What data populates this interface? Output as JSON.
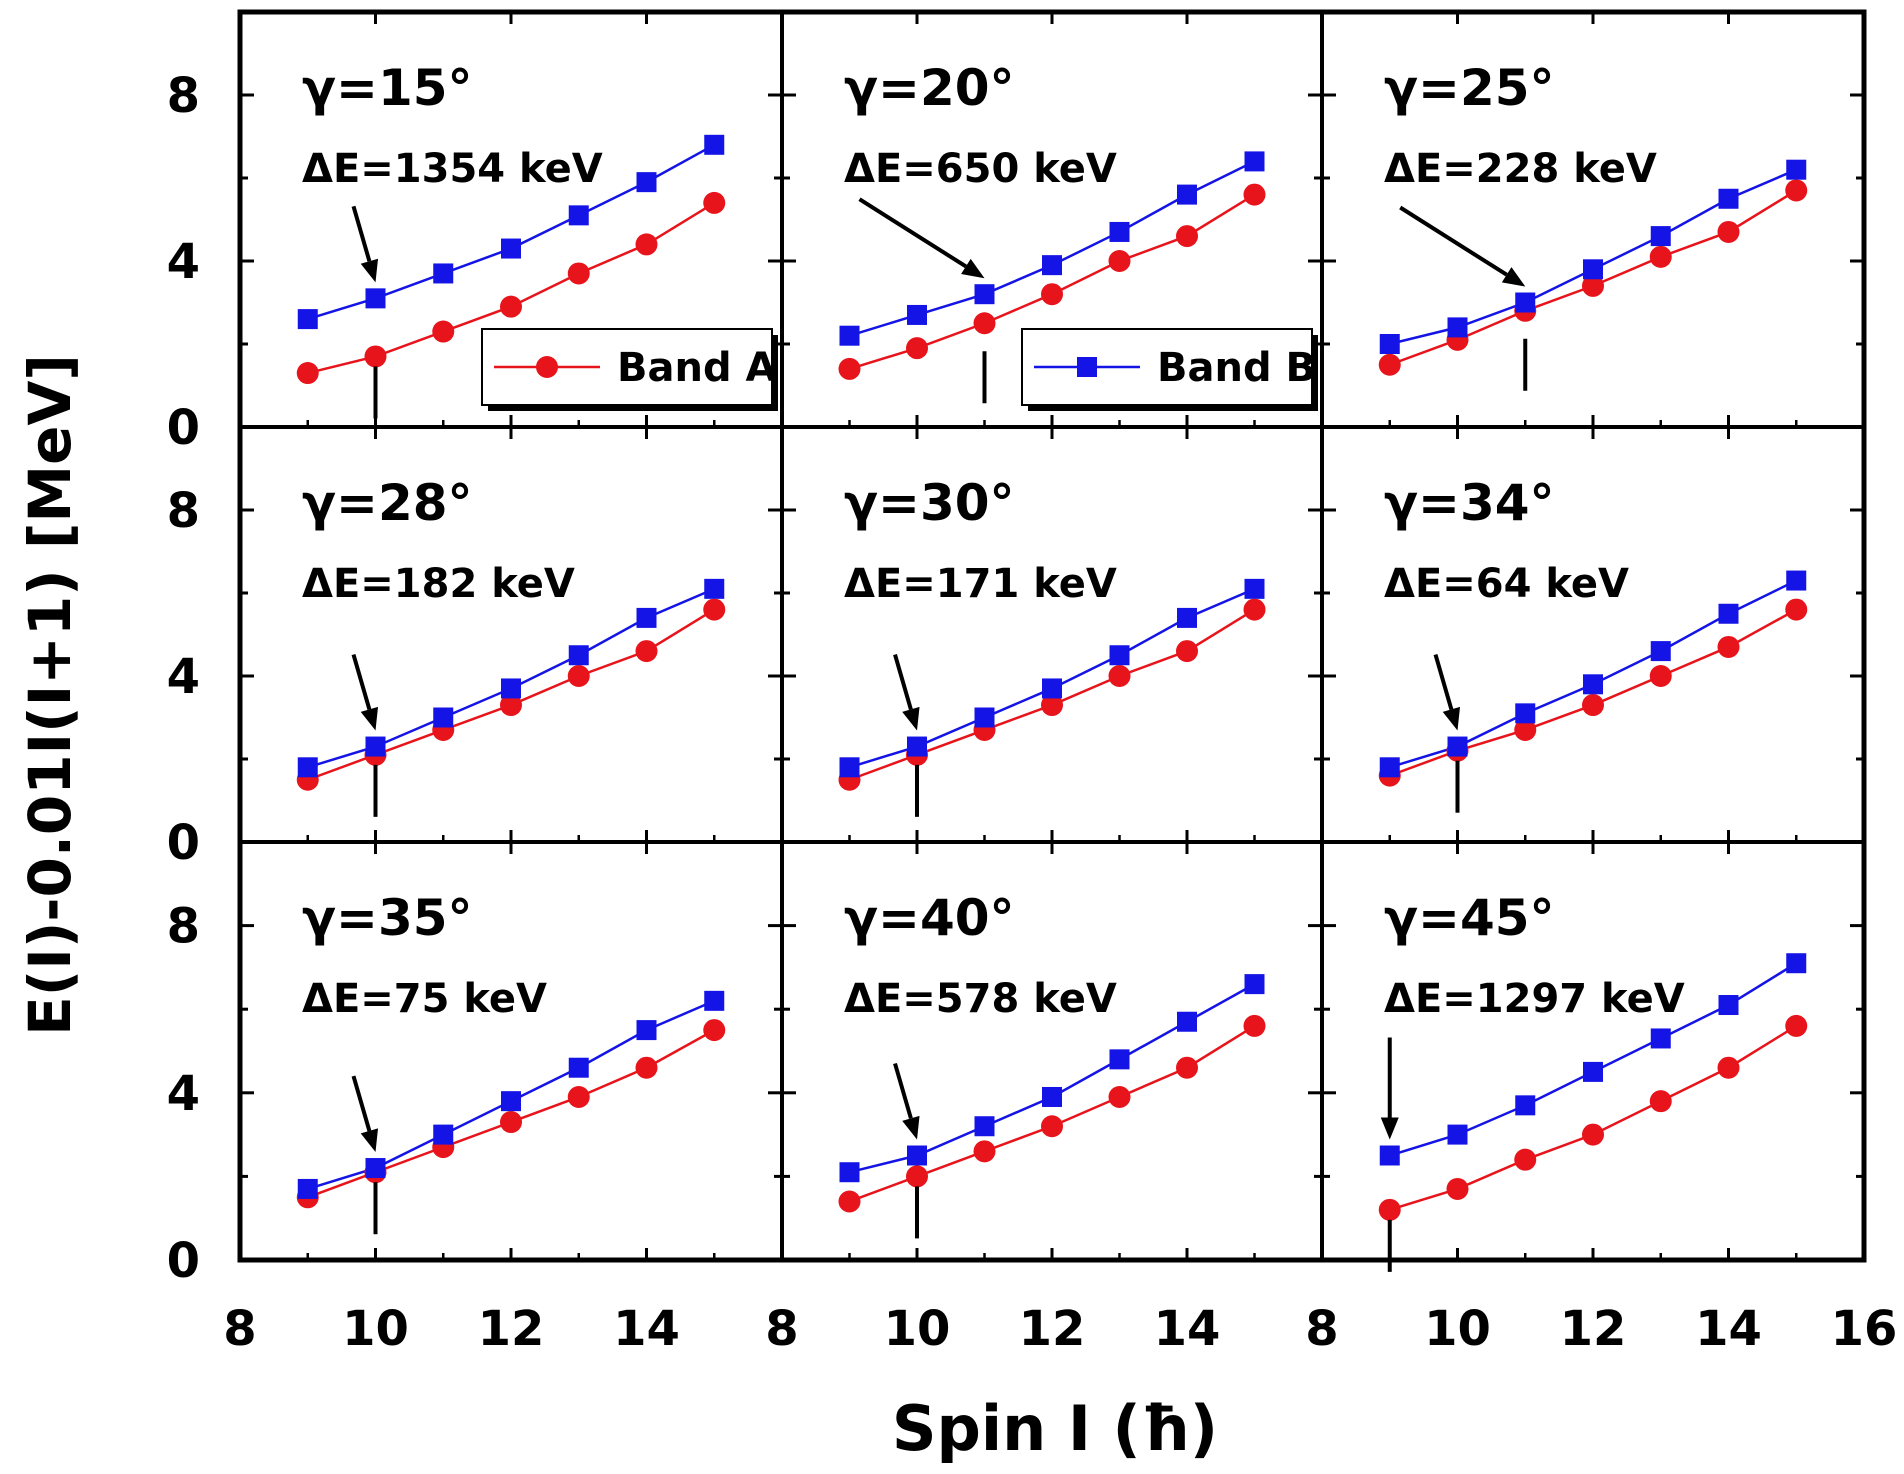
{
  "chart_data": {
    "type": "line",
    "ylabel": "E(I)-0.01I(I+1) [MeV]",
    "xlabel": "Spin I (ħ)",
    "xlim": [
      8,
      16
    ],
    "ylim": [
      0,
      10
    ],
    "x_ticks": [
      8,
      10,
      12,
      14,
      16
    ],
    "y_ticks": [
      0,
      4,
      8
    ],
    "legend": [
      {
        "name": "Band A",
        "color": "#e8141b",
        "marker": "circle",
        "panel": 0
      },
      {
        "name": "Band B",
        "color": "#1414e6",
        "marker": "square",
        "panel": 1
      }
    ],
    "panels": [
      {
        "gamma": "γ=15°",
        "delta_e": "ΔE=1354 keV",
        "x": [
          9,
          10,
          11,
          12,
          13,
          14,
          15
        ],
        "band_a": [
          1.3,
          1.7,
          2.3,
          2.9,
          3.7,
          4.4,
          5.4
        ],
        "band_b": [
          2.6,
          3.1,
          3.7,
          4.3,
          5.1,
          5.9,
          6.8
        ],
        "arrow_spin": 10
      },
      {
        "gamma": "γ=20°",
        "delta_e": "ΔE=650 keV",
        "x": [
          9,
          10,
          11,
          12,
          13,
          14,
          15
        ],
        "band_a": [
          1.4,
          1.9,
          2.5,
          3.2,
          4.0,
          4.6,
          5.6
        ],
        "band_b": [
          2.2,
          2.7,
          3.2,
          3.9,
          4.7,
          5.6,
          6.4
        ],
        "arrow_spin": 11
      },
      {
        "gamma": "γ=25°",
        "delta_e": "ΔE=228 keV",
        "x": [
          9,
          10,
          11,
          12,
          13,
          14,
          15
        ],
        "band_a": [
          1.5,
          2.1,
          2.8,
          3.4,
          4.1,
          4.7,
          5.7
        ],
        "band_b": [
          2.0,
          2.4,
          3.0,
          3.8,
          4.6,
          5.5,
          6.2
        ],
        "arrow_spin": 11
      },
      {
        "gamma": "γ=28°",
        "delta_e": "ΔE=182 keV",
        "x": [
          9,
          10,
          11,
          12,
          13,
          14,
          15
        ],
        "band_a": [
          1.5,
          2.1,
          2.7,
          3.3,
          4.0,
          4.6,
          5.6
        ],
        "band_b": [
          1.8,
          2.3,
          3.0,
          3.7,
          4.5,
          5.4,
          6.1
        ],
        "arrow_spin": 10
      },
      {
        "gamma": "γ=30°",
        "delta_e": "ΔE=171 keV",
        "x": [
          9,
          10,
          11,
          12,
          13,
          14,
          15
        ],
        "band_a": [
          1.5,
          2.1,
          2.7,
          3.3,
          4.0,
          4.6,
          5.6
        ],
        "band_b": [
          1.8,
          2.3,
          3.0,
          3.7,
          4.5,
          5.4,
          6.1
        ],
        "arrow_spin": 10
      },
      {
        "gamma": "γ=34°",
        "delta_e": "ΔE=64 keV",
        "x": [
          9,
          10,
          11,
          12,
          13,
          14,
          15
        ],
        "band_a": [
          1.6,
          2.2,
          2.7,
          3.3,
          4.0,
          4.7,
          5.6
        ],
        "band_b": [
          1.8,
          2.3,
          3.1,
          3.8,
          4.6,
          5.5,
          6.3
        ],
        "arrow_spin": 10
      },
      {
        "gamma": "γ=35°",
        "delta_e": "ΔE=75 keV",
        "x": [
          9,
          10,
          11,
          12,
          13,
          14,
          15
        ],
        "band_a": [
          1.5,
          2.1,
          2.7,
          3.3,
          3.9,
          4.6,
          5.5
        ],
        "band_b": [
          1.7,
          2.2,
          3.0,
          3.8,
          4.6,
          5.5,
          6.2
        ],
        "arrow_spin": 10
      },
      {
        "gamma": "γ=40°",
        "delta_e": "ΔE=578 keV",
        "x": [
          9,
          10,
          11,
          12,
          13,
          14,
          15
        ],
        "band_a": [
          1.4,
          2.0,
          2.6,
          3.2,
          3.9,
          4.6,
          5.6
        ],
        "band_b": [
          2.1,
          2.5,
          3.2,
          3.9,
          4.8,
          5.7,
          6.6
        ],
        "arrow_spin": 10
      },
      {
        "gamma": "γ=45°",
        "delta_e": "ΔE=1297 keV",
        "x": [
          9,
          10,
          11,
          12,
          13,
          14,
          15
        ],
        "band_a": [
          1.2,
          1.7,
          2.4,
          3.0,
          3.8,
          4.6,
          5.6
        ],
        "band_b": [
          2.5,
          3.0,
          3.7,
          4.5,
          5.3,
          6.1,
          7.1
        ],
        "arrow_spin": 9
      }
    ]
  }
}
